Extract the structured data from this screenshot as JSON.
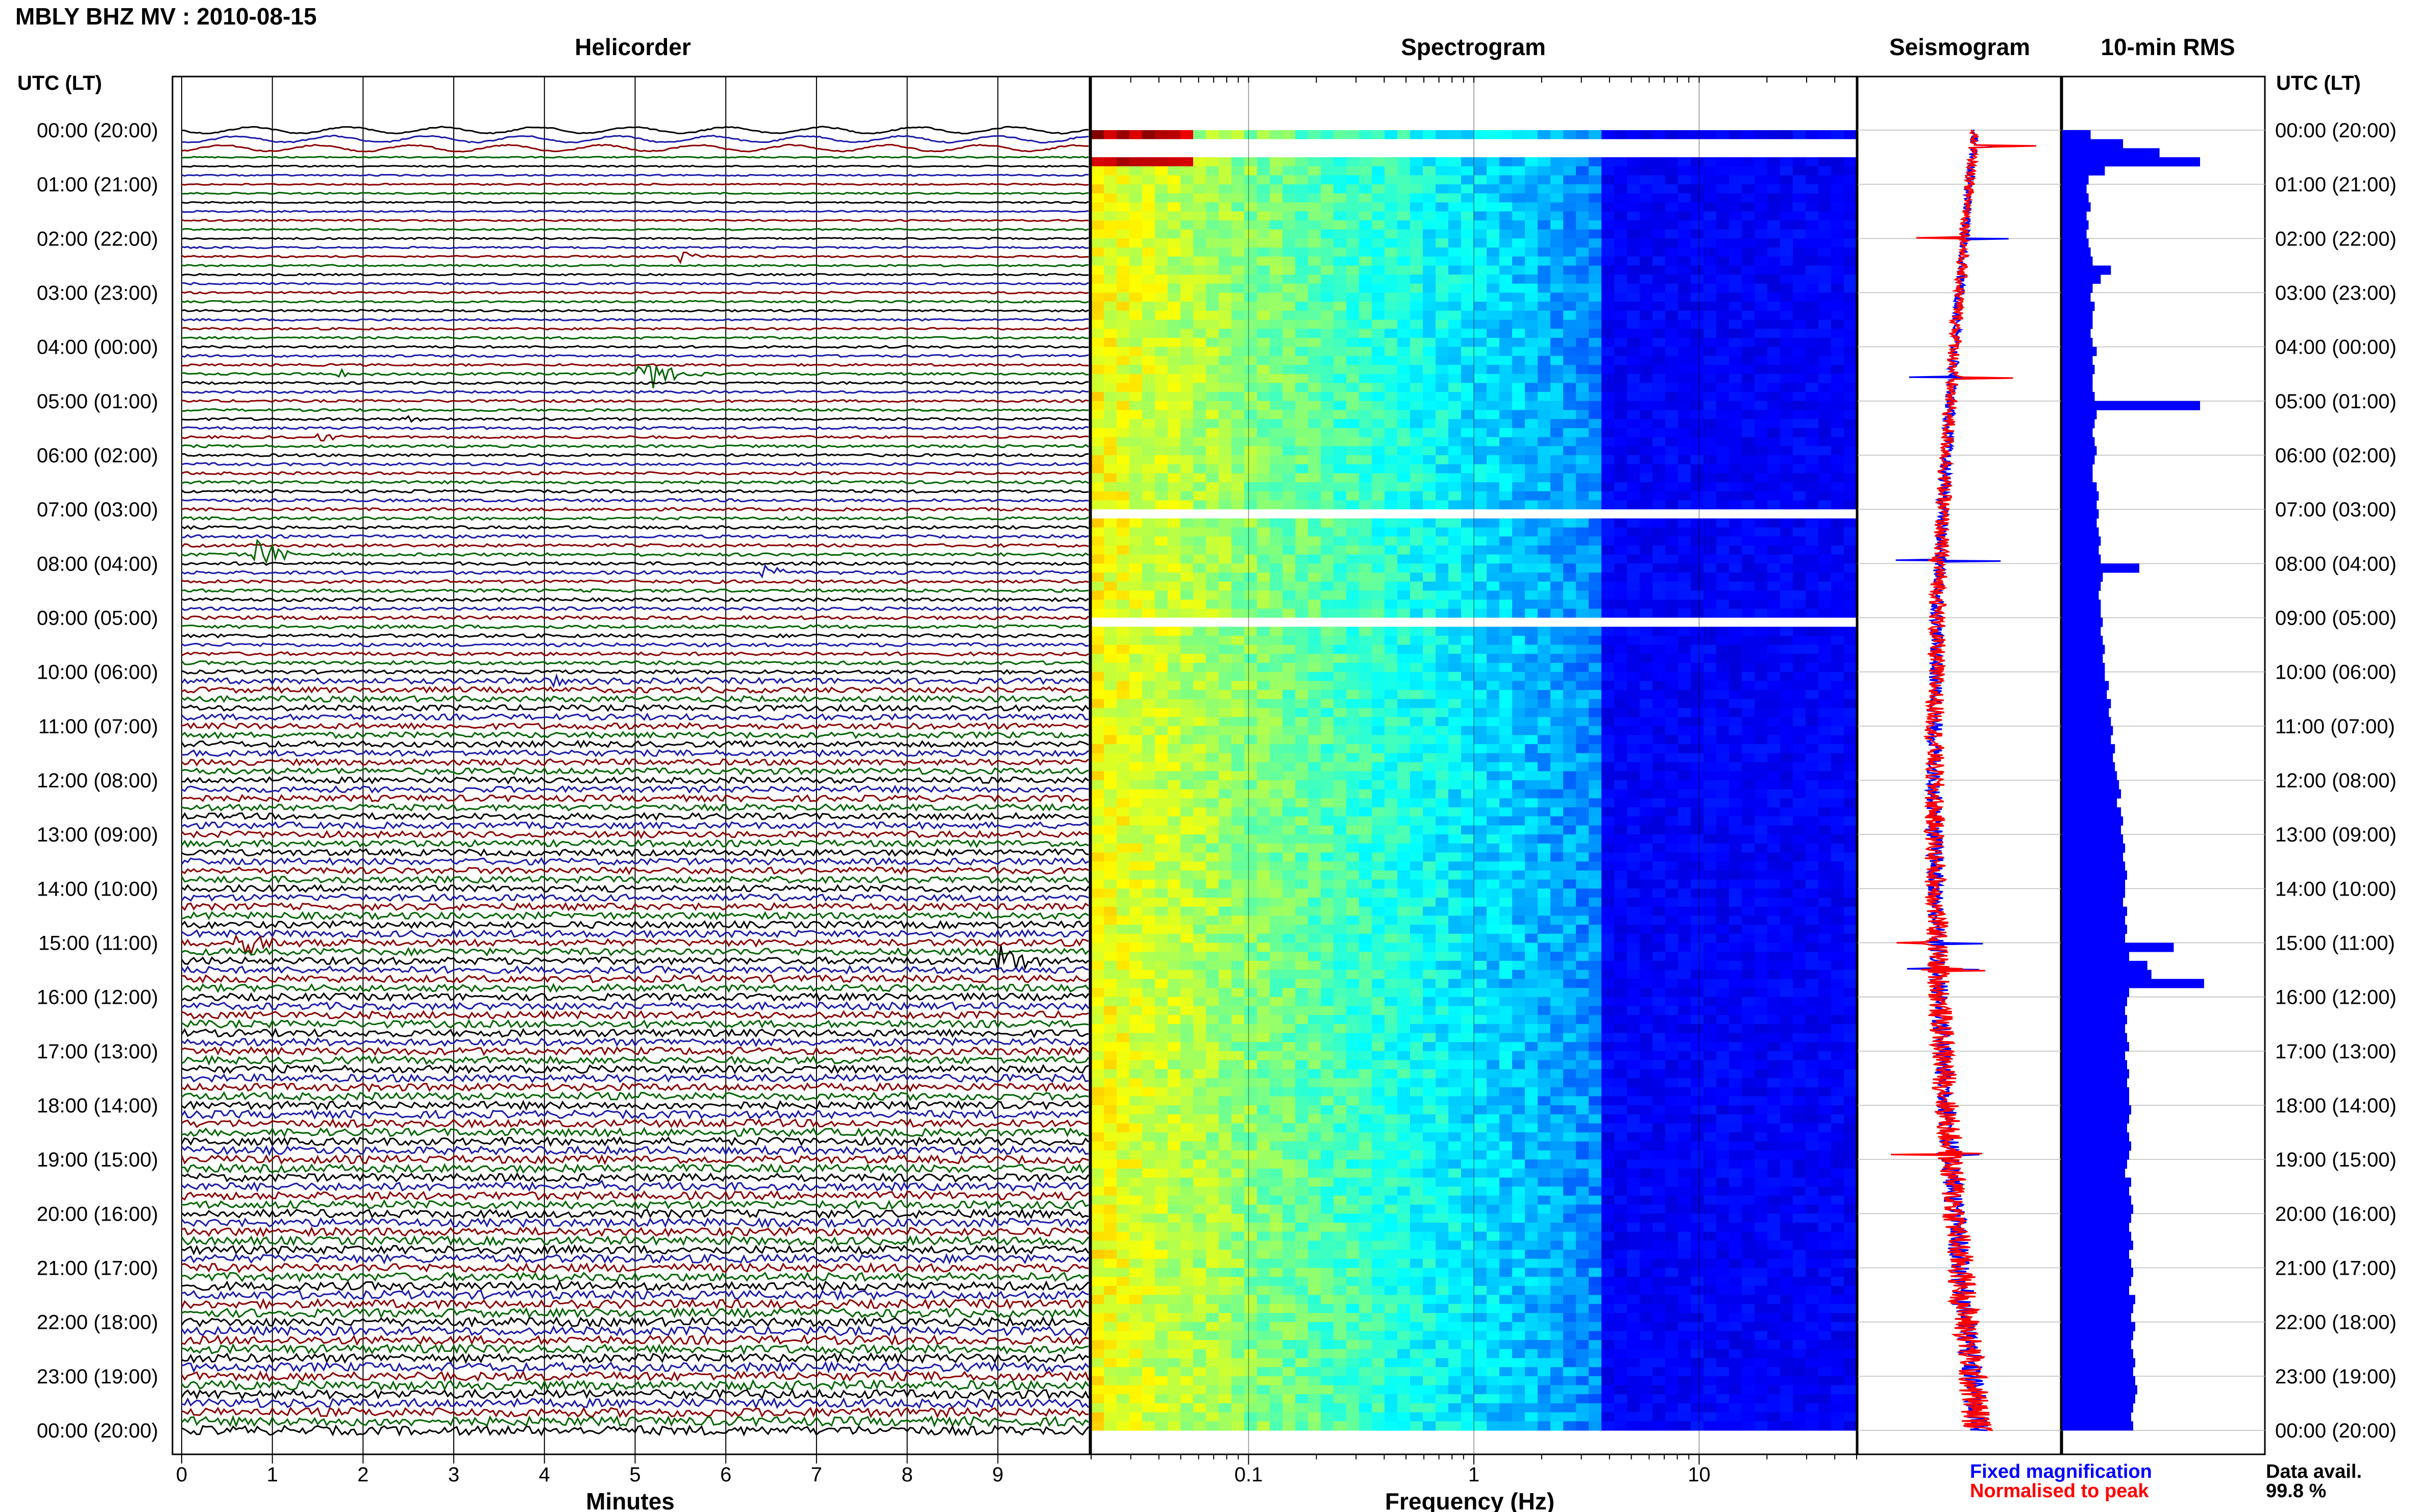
{
  "header": {
    "title": "MBLY BHZ MV : 2010-08-15",
    "utc_label": "UTC (LT)",
    "panel_titles": [
      "Helicorder",
      "Spectrogram",
      "Seismogram",
      "10-min RMS"
    ]
  },
  "footer": {
    "minutes_label": "Minutes",
    "frequency_label": "Frequency (Hz)",
    "legend_fixed": "Fixed magnification",
    "legend_normalised": "Normalised to peak",
    "data_avail_label": "Data avail.",
    "data_avail_value": "99.8 %"
  },
  "colors": {
    "trace_cycle": [
      "#000000",
      "#1a1aaa",
      "#8b0000",
      "#006400"
    ],
    "fixed": "#0000ff",
    "normalised": "#ff0000",
    "rms_bar": "#0000ff"
  },
  "chart_data": [
    {
      "type": "helicorder",
      "title": "Helicorder",
      "xlabel": "Minutes",
      "x_ticks": [
        0,
        1,
        2,
        3,
        4,
        5,
        6,
        7,
        8,
        9
      ],
      "xlim": [
        0,
        10
      ],
      "y_ticks": [
        "00:00 (20:00)",
        "01:00 (21:00)",
        "02:00 (22:00)",
        "03:00 (23:00)",
        "04:00 (00:00)",
        "05:00 (01:00)",
        "06:00 (02:00)",
        "07:00 (03:00)",
        "08:00 (04:00)",
        "09:00 (05:00)",
        "10:00 (06:00)",
        "11:00 (07:00)",
        "12:00 (08:00)",
        "13:00 (09:00)",
        "14:00 (10:00)",
        "15:00 (11:00)",
        "16:00 (12:00)",
        "17:00 (13:00)",
        "18:00 (14:00)",
        "19:00 (15:00)",
        "20:00 (16:00)",
        "21:00 (17:00)",
        "22:00 (18:00)",
        "23:00 (19:00)",
        "00:00 (20:00)"
      ],
      "lines_per_hour": 6,
      "events": [
        {
          "hour": 2.33,
          "minute": 5.5,
          "amplitude": 0.4
        },
        {
          "hour": 4.5,
          "minute": 5.0,
          "amplitude": 3.0
        },
        {
          "hour": 4.5,
          "minute": 1.7,
          "amplitude": 0.3
        },
        {
          "hour": 5.33,
          "minute": 2.5,
          "amplitude": 0.25
        },
        {
          "hour": 5.67,
          "minute": 1.5,
          "amplitude": 0.3
        },
        {
          "hour": 7.83,
          "minute": 0.8,
          "amplitude": 1.6
        },
        {
          "hour": 8.17,
          "minute": 6.4,
          "amplitude": 0.6
        },
        {
          "hour": 10.17,
          "minute": 4.0,
          "amplitude": 0.4
        },
        {
          "hour": 15.0,
          "minute": 0.6,
          "amplitude": 1.7
        },
        {
          "hour": 15.33,
          "minute": 9.0,
          "amplitude": 1.6
        },
        {
          "hour": 19.5,
          "minute": 4.6,
          "amplitude": 0.5
        }
      ]
    },
    {
      "type": "heatmap",
      "title": "Spectrogram",
      "xlabel": "Frequency (Hz)",
      "x_scale": "log",
      "x_ticks": [
        0.1,
        1,
        10
      ],
      "xlim": [
        0.02,
        50
      ],
      "colormap": "jet",
      "gaps_utc_hours": [
        0.2,
        0.3,
        7.05,
        8.95
      ]
    },
    {
      "type": "line",
      "title": "Seismogram",
      "series": [
        {
          "name": "Fixed magnification",
          "color": "#0000ff"
        },
        {
          "name": "Normalised to peak",
          "color": "#ff0000"
        }
      ],
      "spike_hours": [
        0.3,
        2.0,
        4.57,
        7.95,
        15.0,
        15.5,
        18.9
      ]
    },
    {
      "type": "bar",
      "title": "10-min RMS",
      "orientation": "horizontal",
      "bar_interval_minutes": 10,
      "bins": 144,
      "values_relative": [
        0.14,
        0.3,
        0.48,
        0.68,
        0.21,
        0.13,
        0.12,
        0.13,
        0.14,
        0.12,
        0.13,
        0.12,
        0.13,
        0.14,
        0.15,
        0.24,
        0.19,
        0.15,
        0.14,
        0.16,
        0.15,
        0.15,
        0.14,
        0.15,
        0.17,
        0.15,
        0.16,
        0.15,
        0.15,
        0.16,
        0.68,
        0.17,
        0.16,
        0.15,
        0.16,
        0.17,
        0.16,
        0.15,
        0.15,
        0.17,
        0.18,
        0.17,
        0.18,
        0.17,
        0.18,
        0.19,
        0.18,
        0.19,
        0.38,
        0.2,
        0.19,
        0.18,
        0.19,
        0.19,
        0.2,
        0.19,
        0.2,
        0.21,
        0.2,
        0.21,
        0.21,
        0.23,
        0.22,
        0.24,
        0.23,
        0.24,
        0.25,
        0.24,
        0.26,
        0.25,
        0.26,
        0.27,
        0.28,
        0.29,
        0.27,
        0.29,
        0.3,
        0.29,
        0.3,
        0.31,
        0.3,
        0.31,
        0.32,
        0.31,
        0.31,
        0.3,
        0.32,
        0.31,
        0.32,
        0.31,
        0.55,
        0.33,
        0.42,
        0.44,
        0.7,
        0.33,
        0.32,
        0.31,
        0.32,
        0.31,
        0.32,
        0.33,
        0.31,
        0.32,
        0.33,
        0.32,
        0.33,
        0.33,
        0.34,
        0.33,
        0.32,
        0.33,
        0.34,
        0.33,
        0.32,
        0.31,
        0.34,
        0.33,
        0.34,
        0.35,
        0.34,
        0.33,
        0.34,
        0.35,
        0.33,
        0.34,
        0.35,
        0.34,
        0.33,
        0.36,
        0.35,
        0.34,
        0.36,
        0.35,
        0.34,
        0.35,
        0.36,
        0.35,
        0.36,
        0.37,
        0.36,
        0.35,
        0.34,
        0.35
      ]
    }
  ]
}
